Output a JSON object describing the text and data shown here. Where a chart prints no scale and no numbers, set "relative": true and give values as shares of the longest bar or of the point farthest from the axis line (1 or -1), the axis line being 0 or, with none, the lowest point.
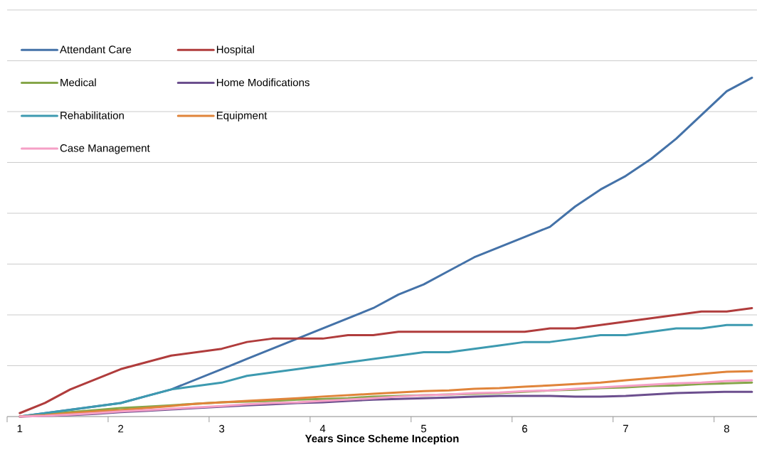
{
  "chart_data": {
    "type": "line",
    "xlabel": "Years Since Scheme Inception",
    "relative": true,
    "grid": "y",
    "legend": "top left",
    "categories": [
      "1",
      null,
      null,
      null,
      "2",
      null,
      null,
      null,
      "3",
      null,
      null,
      null,
      "4",
      null,
      null,
      null,
      "5",
      null,
      null,
      null,
      "6",
      null,
      null,
      null,
      "7",
      null,
      null,
      null,
      "8",
      null
    ],
    "series": [
      {
        "name": "Attendant Care",
        "color": "#4472a8",
        "values": [
          0,
          0.01,
          0.02,
          0.03,
          0.04,
          0.06,
          0.08,
          0.11,
          0.14,
          0.17,
          0.2,
          0.23,
          0.26,
          0.29,
          0.32,
          0.36,
          0.39,
          0.43,
          0.47,
          0.5,
          0.53,
          0.56,
          0.62,
          0.67,
          0.71,
          0.76,
          0.82,
          0.89,
          0.96,
          1
        ]
      },
      {
        "name": "Hospital",
        "color": "#b03c3c",
        "values": [
          0.01,
          0.04,
          0.08,
          0.11,
          0.14,
          0.16,
          0.18,
          0.19,
          0.2,
          0.22,
          0.23,
          0.23,
          0.23,
          0.24,
          0.24,
          0.25,
          0.25,
          0.25,
          0.25,
          0.25,
          0.25,
          0.26,
          0.26,
          0.27,
          0.28,
          0.29,
          0.3,
          0.31,
          0.31,
          0.32
        ]
      },
      {
        "name": "Medical",
        "color": "#86a64a",
        "values": [
          0,
          0.006,
          0.013,
          0.019,
          0.025,
          0.029,
          0.033,
          0.038,
          0.042,
          0.044,
          0.046,
          0.05,
          0.052,
          0.054,
          0.059,
          0.061,
          0.063,
          0.065,
          0.067,
          0.069,
          0.073,
          0.077,
          0.079,
          0.084,
          0.086,
          0.09,
          0.092,
          0.096,
          0.098,
          0.1
        ]
      },
      {
        "name": "Home Modifications",
        "color": "#6c4f8e",
        "values": [
          0,
          0.002,
          0.004,
          0.008,
          0.013,
          0.017,
          0.021,
          0.025,
          0.029,
          0.033,
          0.036,
          0.04,
          0.042,
          0.046,
          0.05,
          0.052,
          0.054,
          0.056,
          0.059,
          0.061,
          0.061,
          0.061,
          0.059,
          0.059,
          0.061,
          0.065,
          0.069,
          0.071,
          0.073,
          0.073
        ]
      },
      {
        "name": "Rehabilitation",
        "color": "#3d9ab0",
        "values": [
          0,
          0.01,
          0.02,
          0.03,
          0.04,
          0.06,
          0.08,
          0.09,
          0.1,
          0.12,
          0.13,
          0.14,
          0.15,
          0.16,
          0.17,
          0.18,
          0.19,
          0.19,
          0.2,
          0.21,
          0.22,
          0.22,
          0.23,
          0.24,
          0.24,
          0.25,
          0.26,
          0.26,
          0.27,
          0.27
        ]
      },
      {
        "name": "Equipment",
        "color": "#e0843a",
        "values": [
          0,
          0.004,
          0.01,
          0.015,
          0.019,
          0.025,
          0.031,
          0.038,
          0.042,
          0.046,
          0.05,
          0.054,
          0.059,
          0.063,
          0.067,
          0.071,
          0.075,
          0.077,
          0.082,
          0.084,
          0.088,
          0.092,
          0.096,
          0.1,
          0.107,
          0.113,
          0.119,
          0.126,
          0.132,
          0.134
        ]
      },
      {
        "name": "Case Management",
        "color": "#f59fc6",
        "values": [
          0,
          0.002,
          0.006,
          0.01,
          0.015,
          0.019,
          0.023,
          0.027,
          0.031,
          0.036,
          0.04,
          0.042,
          0.046,
          0.05,
          0.054,
          0.059,
          0.063,
          0.065,
          0.069,
          0.071,
          0.075,
          0.077,
          0.082,
          0.086,
          0.09,
          0.094,
          0.098,
          0.1,
          0.105,
          0.107
        ]
      }
    ]
  }
}
